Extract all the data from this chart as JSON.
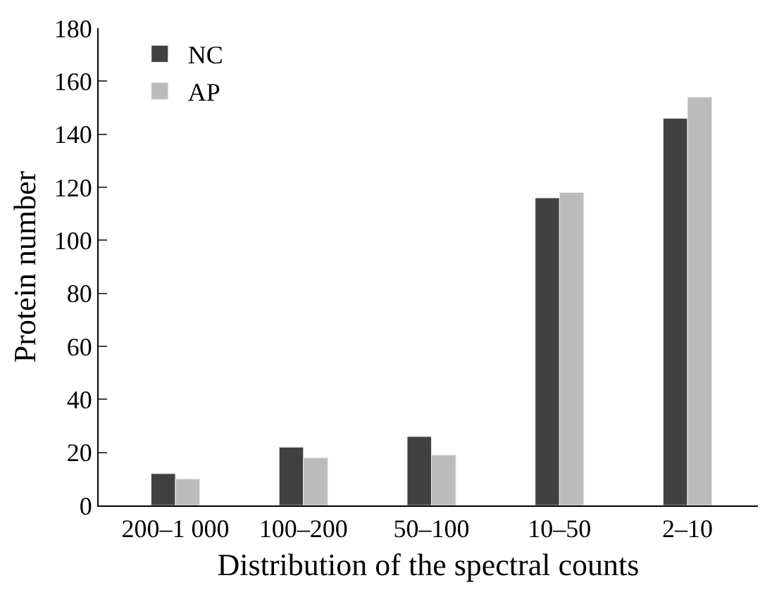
{
  "chart_data": {
    "type": "bar",
    "xlabel": "Distribution of the spectral counts",
    "ylabel": "Protein number",
    "categories": [
      "200–1 000",
      "100–200",
      "50–100",
      "10–50",
      "2–10"
    ],
    "series": [
      {
        "name": "NC",
        "color": "#404040",
        "values": [
          12,
          22,
          26,
          116,
          146
        ]
      },
      {
        "name": "AP",
        "color": "#bbbbbb",
        "values": [
          10,
          18,
          19,
          118,
          154
        ]
      }
    ],
    "ylim": [
      0,
      180
    ],
    "yticks": [
      0,
      20,
      40,
      60,
      80,
      100,
      120,
      140,
      160,
      180
    ],
    "legend": "top left"
  }
}
